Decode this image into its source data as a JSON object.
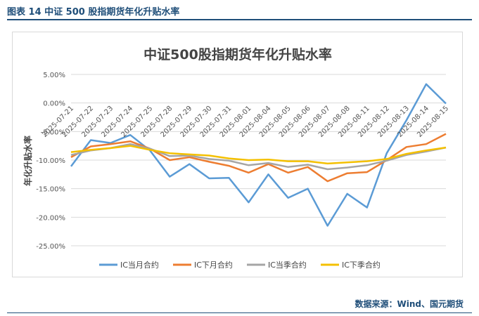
{
  "figure": {
    "caption": "图表 14 中证 500 股指期货年化升贴水率",
    "source": "数据来源：Wind、国元期货"
  },
  "chart_data": {
    "type": "line",
    "title": "中证500股指期货年化升贴水率",
    "ylabel": "年化升贴水率",
    "xlabel": "",
    "categories": [
      "2025-07-21",
      "2025-07-22",
      "2025-07-23",
      "2025-07-24",
      "2025-07-25",
      "2025-07-28",
      "2025-07-29",
      "2025-07-30",
      "2025-07-31",
      "2025-08-01",
      "2025-08-04",
      "2025-08-05",
      "2025-08-06",
      "2025-08-07",
      "2025-08-08",
      "2025-08-11",
      "2025-08-12",
      "2025-08-13",
      "2025-08-14",
      "2025-08-15"
    ],
    "ylim": [
      -0.25,
      0.05
    ],
    "yticks": [
      0.05,
      0.0,
      -0.05,
      -0.1,
      -0.15,
      -0.2,
      -0.25
    ],
    "ytick_labels": [
      "5.00%",
      "0.00%",
      "-5.00%",
      "-10.00%",
      "-15.00%",
      "-20.00%",
      "-25.00%"
    ],
    "grid": true,
    "legend_position": "bottom",
    "series": [
      {
        "name": "IC当月合约",
        "color": "#5b9bd5",
        "values": [
          -0.111,
          -0.065,
          -0.07,
          -0.056,
          -0.083,
          -0.129,
          -0.107,
          -0.132,
          -0.131,
          -0.174,
          -0.125,
          -0.166,
          -0.15,
          -0.215,
          -0.159,
          -0.183,
          -0.088,
          -0.03,
          0.033,
          -0.001
        ]
      },
      {
        "name": "IC下月合约",
        "color": "#ed7d31",
        "values": [
          -0.095,
          -0.076,
          -0.072,
          -0.067,
          -0.08,
          -0.1,
          -0.095,
          -0.103,
          -0.11,
          -0.122,
          -0.107,
          -0.122,
          -0.112,
          -0.137,
          -0.123,
          -0.121,
          -0.1,
          -0.077,
          -0.072,
          -0.054
        ]
      },
      {
        "name": "IC当季合约",
        "color": "#a5a5a5",
        "values": [
          -0.091,
          -0.083,
          -0.079,
          -0.072,
          -0.08,
          -0.093,
          -0.092,
          -0.098,
          -0.101,
          -0.109,
          -0.105,
          -0.112,
          -0.108,
          -0.116,
          -0.113,
          -0.109,
          -0.101,
          -0.091,
          -0.085,
          -0.078
        ]
      },
      {
        "name": "IC下季合约",
        "color": "#f4c000",
        "values": [
          -0.086,
          -0.082,
          -0.079,
          -0.075,
          -0.082,
          -0.088,
          -0.09,
          -0.092,
          -0.097,
          -0.1,
          -0.099,
          -0.102,
          -0.102,
          -0.106,
          -0.104,
          -0.102,
          -0.098,
          -0.089,
          -0.083,
          -0.078
        ]
      }
    ]
  }
}
